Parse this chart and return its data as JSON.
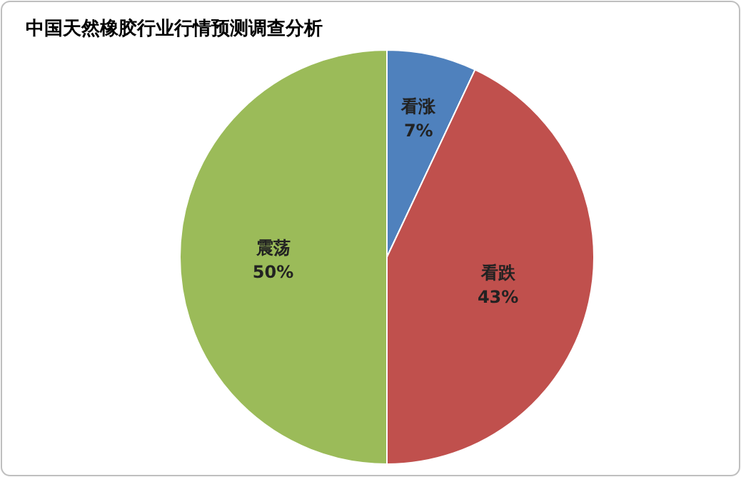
{
  "chart_data": {
    "type": "pie",
    "title": "中国天然橡胶行业行情预测调查分析",
    "categories": [
      "看涨",
      "看跌",
      "震荡"
    ],
    "values": [
      7,
      43,
      50
    ],
    "colors": [
      "#4f81bd",
      "#c0504d",
      "#9bbb59"
    ],
    "value_labels": [
      "7%",
      "43%",
      "50%"
    ],
    "legend": false
  }
}
